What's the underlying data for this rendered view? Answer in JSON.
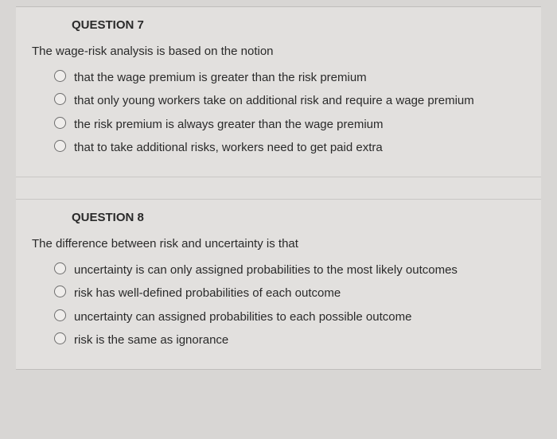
{
  "questions": [
    {
      "title": "QUESTION 7",
      "stem": "The wage-risk analysis is based on the notion",
      "options": [
        "that the wage premium is greater than the risk premium",
        "that only young workers take on additional risk and require a wage premium",
        "the risk premium is always greater than the wage premium",
        "that to take additional risks, workers need to get paid extra"
      ]
    },
    {
      "title": "QUESTION 8",
      "stem": "The difference between risk and uncertainty is that",
      "options": [
        "uncertainty is can only assigned probabilities to the most likely outcomes",
        "risk has well-defined probabilities of each outcome",
        "uncertainty can assigned probabilities to each possible outcome",
        "risk is the same as ignorance"
      ]
    }
  ],
  "colors": {
    "page_bg": "#d8d6d4",
    "panel_bg": "#e2e0de",
    "border": "#c9c7c5",
    "text": "#2a2a2a",
    "radio_border": "#6e6e6e"
  },
  "typography": {
    "font_family": "Arial",
    "title_size_pt": 11,
    "title_weight": "bold",
    "body_size_pt": 11
  }
}
